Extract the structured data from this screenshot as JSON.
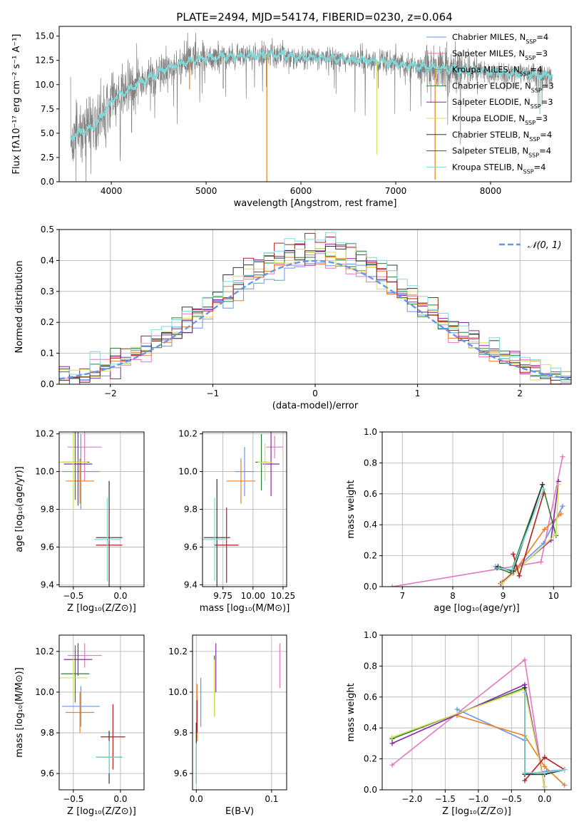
{
  "figure": {
    "title": "PLATE=2494, MJD=54174, FIBERID=0230, z=0.064"
  },
  "models": [
    {
      "name": "Chabrier MILES",
      "nssp": "4",
      "color": "#6495ed"
    },
    {
      "name": "Salpeter MILES",
      "nssp": "3",
      "color": "#e377c2"
    },
    {
      "name": "Kroupa MILES",
      "nssp": "4",
      "color": "#f07f1e"
    },
    {
      "name": "Chabrier ELODIE",
      "nssp": "3",
      "color": "#2e7d32"
    },
    {
      "name": "Salpeter ELODIE",
      "nssp": "3",
      "color": "#8e24aa"
    },
    {
      "name": "Kroupa ELODIE",
      "nssp": "3",
      "color": "#d4e157"
    },
    {
      "name": "Chabrier STELIB",
      "nssp": "4",
      "color": "#333333"
    },
    {
      "name": "Salpeter STELIB",
      "nssp": "4",
      "color": "#b71c1c"
    },
    {
      "name": "Kroupa STELIB",
      "nssp": "4",
      "color": "#7fd8d8"
    }
  ],
  "chart_data": [
    {
      "id": "spectrum",
      "type": "line",
      "xlabel": "wavelength [Angstrom, rest frame]",
      "ylabel": "Flux [fλ10⁻¹⁷ erg cm⁻² s⁻¹ A⁻¹]",
      "xlim": [
        3450,
        8850
      ],
      "ylim": [
        0,
        16
      ],
      "xticks": [
        4000,
        5000,
        6000,
        7000,
        8000
      ],
      "yticks": [
        0.0,
        2.5,
        5.0,
        7.5,
        10.0,
        12.5,
        15.0
      ],
      "data_color": "#808080",
      "model_color": "#7fd8d8",
      "continuum": {
        "x": [
          3570,
          3650,
          3750,
          3850,
          3950,
          4050,
          4150,
          4250,
          4350,
          4500,
          4700,
          4900,
          5100,
          5300,
          5500,
          5700,
          5900,
          6100,
          6300,
          6500,
          6700,
          6900,
          7100,
          7300,
          7500,
          7700,
          7900,
          8100,
          8300,
          8500,
          8650
        ],
        "y": [
          4.5,
          5.0,
          5.3,
          6.0,
          7.6,
          8.8,
          9.3,
          9.9,
          10.4,
          11.3,
          12.1,
          12.6,
          12.8,
          12.9,
          13.0,
          13.1,
          12.9,
          12.8,
          12.7,
          12.6,
          12.5,
          12.3,
          12.0,
          11.8,
          11.6,
          11.5,
          11.4,
          11.2,
          11.1,
          11.0,
          11.0
        ]
      },
      "dips": [
        {
          "x": 5640,
          "y": 0.0
        },
        {
          "x": 6800,
          "y": 2.8
        },
        {
          "x": 7415,
          "y": 0.2
        },
        {
          "x": 4825,
          "y": 9.5
        },
        {
          "x": 5180,
          "y": 9.6
        },
        {
          "x": 8520,
          "y": 7.0
        }
      ],
      "legend": "upper right"
    },
    {
      "id": "residuals",
      "type": "histogram",
      "xlabel": "(data-model)/error",
      "ylabel": "Normed distribution",
      "xlim": [
        -2.5,
        2.5
      ],
      "ylim": [
        0.0,
        0.5
      ],
      "xticks": [
        -2,
        -1,
        0,
        1,
        2
      ],
      "yticks": [
        0.0,
        0.1,
        0.2,
        0.3,
        0.4,
        0.5
      ],
      "bin_width": 0.1,
      "bin_start": -2.5,
      "reference_label": "𝒩(0, 1)",
      "reference_color": "#6495ed",
      "grid": true
    },
    {
      "id": "age_vs_Z",
      "type": "errorbar",
      "xlabel": "Z [log₁₀(Z/Z⊙)]",
      "ylabel": "age  [log₁₀(age/yr)]",
      "xlim": [
        -0.65,
        0.25
      ],
      "ylim": [
        9.39,
        10.21
      ],
      "xticks": [
        -0.5,
        0.0
      ],
      "yticks": [
        9.4,
        9.6,
        9.8,
        10.0,
        10.2
      ],
      "points": [
        {
          "x": -0.42,
          "y": 10.0,
          "xerr": 0.2,
          "yerr": 0.2,
          "model": 0
        },
        {
          "x": -0.38,
          "y": 10.13,
          "xerr": 0.18,
          "yerr": 0.18,
          "model": 1
        },
        {
          "x": -0.43,
          "y": 9.95,
          "xerr": 0.15,
          "yerr": 0.12,
          "model": 2
        },
        {
          "x": -0.48,
          "y": 10.05,
          "xerr": 0.15,
          "yerr": 0.2,
          "model": 3
        },
        {
          "x": -0.45,
          "y": 10.04,
          "xerr": 0.15,
          "yerr": 0.22,
          "model": 4
        },
        {
          "x": -0.5,
          "y": 10.05,
          "xerr": 0.15,
          "yerr": 0.25,
          "model": 5
        },
        {
          "x": -0.12,
          "y": 9.65,
          "xerr": 0.14,
          "yerr": 0.3,
          "model": 6
        },
        {
          "x": -0.12,
          "y": 9.61,
          "xerr": 0.14,
          "yerr": 0.2,
          "model": 7
        },
        {
          "x": -0.14,
          "y": 9.64,
          "xerr": 0.14,
          "yerr": 0.22,
          "model": 8
        }
      ]
    },
    {
      "id": "age_vs_mass",
      "type": "errorbar",
      "xlabel": "mass [log₁₀(M/M⊙)]",
      "ylabel": "",
      "xlim": [
        9.58,
        10.28
      ],
      "ylim": [
        9.39,
        10.21
      ],
      "xticks": [
        9.75,
        10.0,
        10.25
      ],
      "yticks": [
        9.4,
        9.6,
        9.8,
        10.0,
        10.2
      ],
      "points": [
        {
          "x": 9.93,
          "y": 10.0,
          "xerr": 0.08,
          "yerr": 0.13,
          "model": 0
        },
        {
          "x": 10.18,
          "y": 10.13,
          "xerr": 0.07,
          "yerr": 0.06,
          "model": 1
        },
        {
          "x": 9.9,
          "y": 9.95,
          "xerr": 0.12,
          "yerr": 0.12,
          "model": 2
        },
        {
          "x": 10.07,
          "y": 10.05,
          "xerr": 0.05,
          "yerr": 0.15,
          "model": 3
        },
        {
          "x": 10.15,
          "y": 10.04,
          "xerr": 0.07,
          "yerr": 0.17,
          "model": 4
        },
        {
          "x": 10.1,
          "y": 10.05,
          "xerr": 0.06,
          "yerr": 0.1,
          "model": 5
        },
        {
          "x": 9.7,
          "y": 9.65,
          "xerr": 0.11,
          "yerr": 0.31,
          "model": 6
        },
        {
          "x": 9.78,
          "y": 9.61,
          "xerr": 0.1,
          "yerr": 0.2,
          "model": 7
        },
        {
          "x": 9.68,
          "y": 9.64,
          "xerr": 0.1,
          "yerr": 0.22,
          "model": 8
        }
      ]
    },
    {
      "id": "weight_vs_age",
      "type": "line",
      "xlabel": "age  [log₁₀(age/yr)]",
      "ylabel": "mass weight",
      "xlim": [
        6.6,
        10.35
      ],
      "ylim": [
        0.0,
        1.0
      ],
      "xticks": [
        7,
        8,
        9,
        10
      ],
      "yticks": [
        0.0,
        0.2,
        0.4,
        0.6,
        0.8,
        1.0
      ],
      "grid": true,
      "series": [
        {
          "model": 0,
          "x": [
            8.85,
            9.2,
            9.8,
            10.18
          ],
          "y": [
            0.13,
            0.1,
            0.28,
            0.52
          ]
        },
        {
          "model": 1,
          "x": [
            6.8,
            9.75,
            10.18
          ],
          "y": [
            0.0,
            0.16,
            0.84
          ]
        },
        {
          "model": 2,
          "x": [
            8.98,
            9.25,
            9.82,
            10.15
          ],
          "y": [
            0.03,
            0.11,
            0.37,
            0.47
          ]
        },
        {
          "model": 3,
          "x": [
            8.88,
            9.15,
            9.78,
            10.05
          ],
          "y": [
            0.12,
            0.09,
            0.66,
            0.33
          ]
        },
        {
          "model": 4,
          "x": [
            8.95,
            9.2,
            9.95,
            10.1
          ],
          "y": [
            0.02,
            0.09,
            0.3,
            0.68
          ]
        },
        {
          "model": 5,
          "x": [
            8.97,
            9.22,
            10.05,
            10.1
          ],
          "y": [
            0.02,
            0.09,
            0.34,
            0.66
          ]
        },
        {
          "model": 6,
          "x": [
            8.9,
            9.2,
            9.78
          ],
          "y": [
            0.13,
            0.1,
            0.66
          ]
        },
        {
          "model": 7,
          "x": [
            9.2,
            9.32,
            9.8
          ],
          "y": [
            0.21,
            0.07,
            0.6
          ]
        },
        {
          "model": 8,
          "x": [
            8.92,
            9.18,
            9.8
          ],
          "y": [
            0.12,
            0.11,
            0.63
          ]
        }
      ]
    },
    {
      "id": "mass_vs_Z",
      "type": "errorbar",
      "xlabel": "Z [log₁₀(Z/Z⊙)]",
      "ylabel": "mass [log₁₀(M/M⊙)]",
      "xlim": [
        -0.65,
        0.25
      ],
      "ylim": [
        9.52,
        10.28
      ],
      "xticks": [
        -0.5,
        0.0
      ],
      "yticks": [
        9.6,
        9.8,
        10.0,
        10.2
      ],
      "points": [
        {
          "x": -0.42,
          "y": 9.93,
          "xerr": 0.2,
          "yerr": 0.1,
          "model": 0
        },
        {
          "x": -0.38,
          "y": 10.18,
          "xerr": 0.18,
          "yerr": 0.06,
          "model": 1
        },
        {
          "x": -0.43,
          "y": 9.9,
          "xerr": 0.15,
          "yerr": 0.1,
          "model": 2
        },
        {
          "x": -0.48,
          "y": 10.09,
          "xerr": 0.15,
          "yerr": 0.14,
          "model": 3
        },
        {
          "x": -0.45,
          "y": 10.16,
          "xerr": 0.15,
          "yerr": 0.08,
          "model": 4
        },
        {
          "x": -0.5,
          "y": 10.07,
          "xerr": 0.15,
          "yerr": 0.1,
          "model": 5
        },
        {
          "x": -0.12,
          "y": 9.68,
          "xerr": 0.14,
          "yerr": 0.13,
          "model": 6
        },
        {
          "x": -0.08,
          "y": 9.78,
          "xerr": 0.13,
          "yerr": 0.16,
          "model": 7
        },
        {
          "x": -0.12,
          "y": 9.68,
          "xerr": 0.14,
          "yerr": 0.08,
          "model": 8
        }
      ]
    },
    {
      "id": "mass_vs_ebv",
      "type": "errorbar",
      "xlabel": "E(B-V)",
      "ylabel": "",
      "xlim": [
        -0.005,
        0.12
      ],
      "ylim": [
        9.52,
        10.28
      ],
      "xticks": [
        0.0,
        0.1
      ],
      "yticks": [
        9.6,
        9.8,
        10.0,
        10.2
      ],
      "points": [
        {
          "x": 0.006,
          "y": 9.95,
          "xerr": 0.0,
          "yerr": 0.12,
          "model": 0
        },
        {
          "x": 0.111,
          "y": 10.13,
          "xerr": 0.0,
          "yerr": 0.11,
          "model": 1
        },
        {
          "x": 0.001,
          "y": 9.9,
          "xerr": 0.0,
          "yerr": 0.14,
          "model": 2
        },
        {
          "x": 0.024,
          "y": 10.03,
          "xerr": 0.0,
          "yerr": 0.15,
          "model": 3
        },
        {
          "x": 0.026,
          "y": 10.12,
          "xerr": 0.0,
          "yerr": 0.12,
          "model": 4
        },
        {
          "x": 0.024,
          "y": 10.02,
          "xerr": 0.0,
          "yerr": 0.14,
          "model": 5
        },
        {
          "x": 0.0,
          "y": 9.7,
          "xerr": 0.0,
          "yerr": 0.15,
          "model": 6
        },
        {
          "x": 0.001,
          "y": 9.88,
          "xerr": 0.0,
          "yerr": 0.08,
          "model": 7
        },
        {
          "x": 0.0,
          "y": 9.65,
          "xerr": 0.0,
          "yerr": 0.1,
          "model": 8
        }
      ]
    },
    {
      "id": "weight_vs_Z",
      "type": "line",
      "xlabel": "Z [log₁₀(Z/Z⊙)]",
      "ylabel": "mass weight",
      "xlim": [
        -2.45,
        0.4
      ],
      "ylim": [
        0.0,
        1.0
      ],
      "xticks": [
        -2.0,
        -1.5,
        -1.0,
        -0.5,
        0.0
      ],
      "yticks": [
        0.0,
        0.2,
        0.4,
        0.6,
        0.8,
        1.0
      ],
      "grid": true,
      "series": [
        {
          "model": 0,
          "x": [
            -1.32,
            -0.3,
            -0.3,
            0.03,
            0.3
          ],
          "y": [
            0.52,
            0.32,
            0.1,
            0.12,
            0.13
          ]
        },
        {
          "model": 1,
          "x": [
            -2.3,
            -0.3,
            0.0
          ],
          "y": [
            0.16,
            0.84,
            0.0
          ]
        },
        {
          "model": 2,
          "x": [
            -1.32,
            -0.3,
            0.0,
            0.3
          ],
          "y": [
            0.48,
            0.35,
            0.15,
            0.03
          ]
        },
        {
          "model": 3,
          "x": [
            -2.3,
            -0.3,
            -0.3,
            0.0,
            0.3
          ],
          "y": [
            0.33,
            0.66,
            0.1,
            0.1,
            0.13
          ]
        },
        {
          "model": 4,
          "x": [
            -2.3,
            -0.3,
            0.0
          ],
          "y": [
            0.3,
            0.68,
            0.02
          ]
        },
        {
          "model": 5,
          "x": [
            -2.3,
            -0.3,
            0.0
          ],
          "y": [
            0.34,
            0.65,
            0.02
          ]
        },
        {
          "model": 6,
          "x": [
            -0.3,
            -0.3,
            0.0,
            0.3
          ],
          "y": [
            0.66,
            0.1,
            0.1,
            0.13
          ]
        },
        {
          "model": 7,
          "x": [
            -0.3,
            0.0,
            0.3
          ],
          "y": [
            0.06,
            0.21,
            0.13
          ]
        },
        {
          "model": 8,
          "x": [
            -0.3,
            -0.3,
            0.0,
            0.3
          ],
          "y": [
            0.63,
            0.11,
            0.11,
            0.13
          ]
        }
      ]
    }
  ]
}
